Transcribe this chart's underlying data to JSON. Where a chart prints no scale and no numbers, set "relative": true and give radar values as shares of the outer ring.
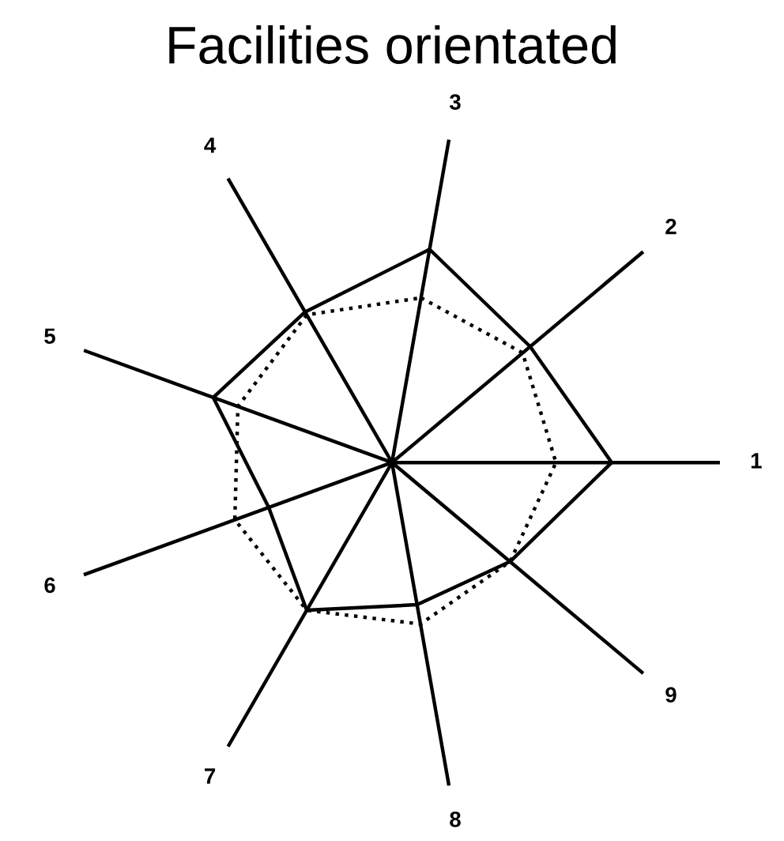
{
  "chart_data": {
    "type": "radar",
    "title": "Facilities orientated",
    "relative": true,
    "categories": [
      "3",
      "2",
      "1",
      "9",
      "8",
      "7",
      "6",
      "5",
      "4"
    ],
    "series": [
      {
        "color": "#000000",
        "line_style": "solid",
        "values": [
          0.66,
          0.55,
          0.67,
          0.47,
          0.44,
          0.52,
          0.4,
          0.58,
          0.53
        ]
      },
      {
        "color": "#000000",
        "line_style": "dotted",
        "values": [
          0.51,
          0.52,
          0.5,
          0.47,
          0.5,
          0.52,
          0.51,
          0.5,
          0.52
        ]
      }
    ]
  }
}
